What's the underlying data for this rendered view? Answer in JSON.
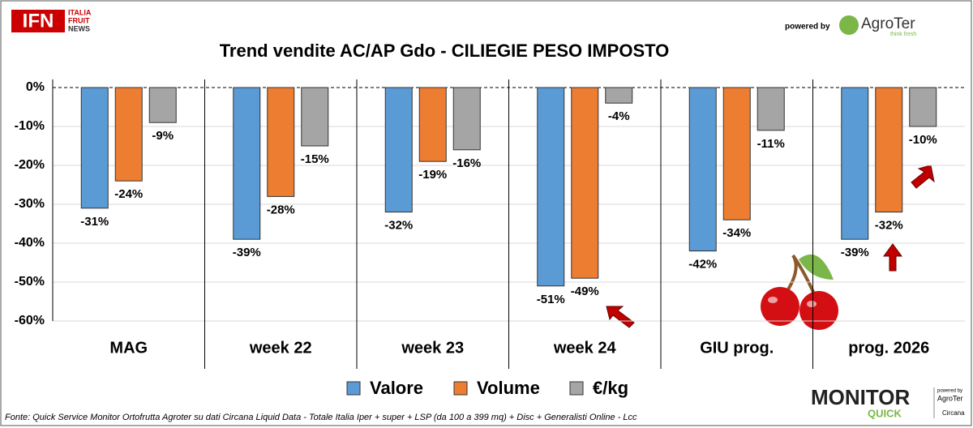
{
  "chart_data": {
    "type": "bar",
    "title": "Trend vendite AC/AP Gdo - CILIEGIE PESO IMPOSTO",
    "categories": [
      "MAG",
      "week 22",
      "week 23",
      "week 24",
      "GIU prog.",
      "prog. 2026"
    ],
    "series": [
      {
        "name": "Valore",
        "color": "#5b9bd5",
        "values": [
          -31,
          -39,
          -32,
          -51,
          -42,
          -39
        ],
        "value_labels": [
          "-31%",
          "-39%",
          "-32%",
          "-51%",
          "-42%",
          "-39%"
        ]
      },
      {
        "name": "Volume",
        "color": "#ed7d31",
        "values": [
          -24,
          -28,
          -19,
          -49,
          -34,
          -32
        ],
        "value_labels": [
          "-24%",
          "-28%",
          "-19%",
          "-49%",
          "-34%",
          "-32%"
        ]
      },
      {
        "name": "€/kg",
        "color": "#a5a5a5",
        "values": [
          -9,
          -15,
          -16,
          -4,
          -11,
          -10
        ],
        "value_labels": [
          "-9%",
          "-15%",
          "-16%",
          "-4%",
          "-11%",
          "-10%"
        ]
      }
    ],
    "ylim": [
      -60,
      0
    ],
    "yticks": [
      {
        "value": 0,
        "label": "0%"
      },
      {
        "value": -10,
        "label": "-10%"
      },
      {
        "value": -20,
        "label": "-20%"
      },
      {
        "value": -30,
        "label": "-30%"
      },
      {
        "value": -40,
        "label": "-40%"
      },
      {
        "value": -50,
        "label": "-50%"
      },
      {
        "value": -60,
        "label": "-60%"
      }
    ],
    "grid": true,
    "legend": "bottom",
    "source": "Fonte: Quick Service Monitor Ortofrutta Agroter su dati Circana Liquid Data - Totale Italia Iper + super + LSP (da 100 a 399 mq) + Disc + Generalisti Online - Lcc"
  },
  "logos": {
    "ifn": "IFN",
    "ifn_sub": [
      "ITALIA",
      "FRUIT",
      "NEWS"
    ],
    "powered_by": "powered by",
    "agroter": "AgroTer",
    "agroter_sub": "think fresh",
    "monitor": "MONITOR",
    "quick": "QUICK",
    "monitor_powered": "powered by",
    "monitor_agroter": "AgroTer",
    "circana": "Circana"
  }
}
